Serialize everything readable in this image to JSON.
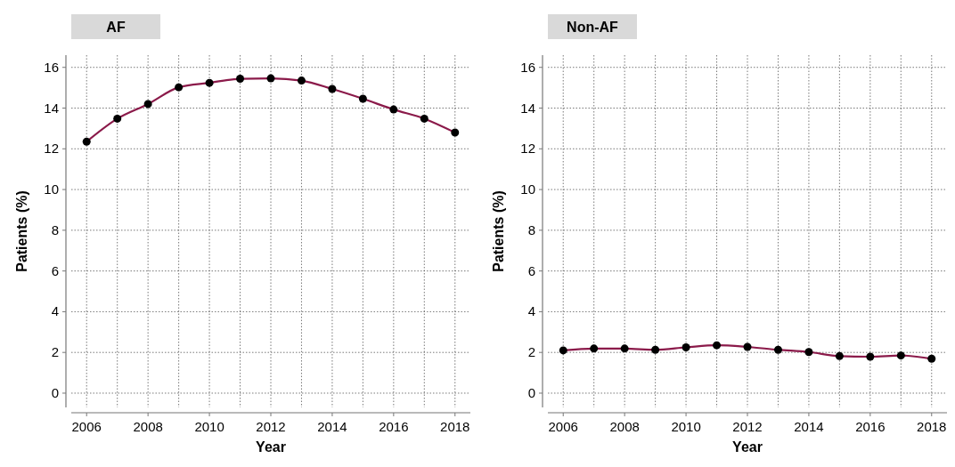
{
  "chart_data": [
    {
      "type": "line",
      "title": "AF",
      "xlabel": "Year",
      "ylabel": "Patients (%)",
      "x": [
        2006,
        2007,
        2008,
        2009,
        2010,
        2011,
        2012,
        2013,
        2014,
        2015,
        2016,
        2017,
        2018
      ],
      "series": [
        {
          "color": "#8b1a4a",
          "values": [
            12.35,
            13.48,
            14.2,
            15.02,
            15.24,
            15.44,
            15.46,
            15.35,
            14.94,
            14.46,
            13.93,
            13.48,
            12.8
          ]
        }
      ],
      "xlim": [
        2005.5,
        2018.5
      ],
      "ylim": [
        -0.7,
        16.6
      ],
      "xticks": [
        2006,
        {
          "value": 2007,
          "label": null
        },
        2008,
        {
          "value": 2009,
          "label": null
        },
        2010,
        {
          "value": 2011,
          "label": null
        },
        2012,
        {
          "value": 2013,
          "label": null
        },
        2014,
        {
          "value": 2015,
          "label": null
        },
        2016,
        {
          "value": 2017,
          "label": null
        },
        2018
      ],
      "yticks": [
        0,
        2,
        4,
        6,
        8,
        10,
        12,
        14,
        16
      ],
      "grid": true,
      "marker": "circle",
      "line_style": "solid"
    },
    {
      "type": "line",
      "title": "Non-AF",
      "xlabel": "Year",
      "ylabel": "Patients (%)",
      "x": [
        2006,
        2007,
        2008,
        2009,
        2010,
        2011,
        2012,
        2013,
        2014,
        2015,
        2016,
        2017,
        2018
      ],
      "series": [
        {
          "color": "#8b1a4a",
          "values": [
            2.1,
            2.19,
            2.19,
            2.13,
            2.25,
            2.35,
            2.27,
            2.13,
            2.02,
            1.82,
            1.79,
            1.85,
            1.69
          ]
        }
      ],
      "xlim": [
        2005.5,
        2018.5
      ],
      "ylim": [
        -0.7,
        16.6
      ],
      "xticks": [
        2006,
        {
          "value": 2007,
          "label": null
        },
        2008,
        {
          "value": 2009,
          "label": null
        },
        2010,
        {
          "value": 2011,
          "label": null
        },
        2012,
        {
          "value": 2013,
          "label": null
        },
        2014,
        {
          "value": 2015,
          "label": null
        },
        2016,
        {
          "value": 2017,
          "label": null
        },
        2018
      ],
      "yticks": [
        0,
        2,
        4,
        6,
        8,
        10,
        12,
        14,
        16
      ],
      "grid": true,
      "marker": "circle",
      "line_style": "solid"
    }
  ]
}
